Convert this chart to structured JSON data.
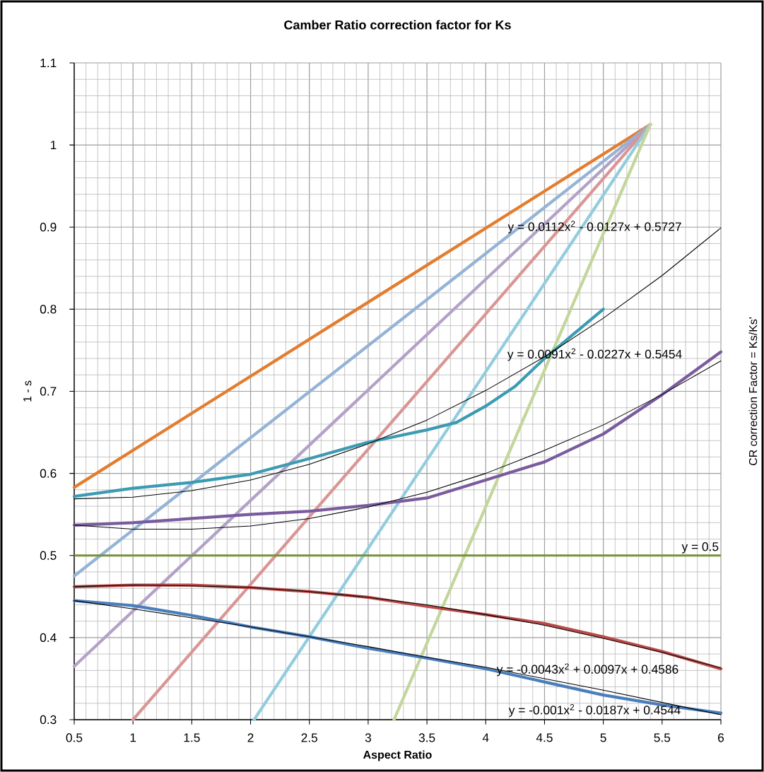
{
  "chart_data": {
    "type": "line",
    "title": "Camber Ratio correction factor for Ks",
    "xlabel": "Aspect Ratio",
    "ylabel": "1 - s",
    "y2label": "CR correction Factor = Ks/Ks'",
    "xlim": [
      0.5,
      6
    ],
    "ylim": [
      0.3,
      1.1
    ],
    "xticks": [
      0.5,
      1,
      1.5,
      2,
      2.5,
      3,
      3.5,
      4,
      4.5,
      5,
      5.5,
      6
    ],
    "yticks": [
      0.3,
      0.4,
      0.5,
      0.6,
      0.7,
      0.8,
      0.9,
      1,
      1.1
    ],
    "grid": true,
    "series": [
      {
        "color": "#e37d2f",
        "x": [
          0.5,
          5.4
        ],
        "values": [
          0.583,
          1.025
        ]
      },
      {
        "color": "#95b3d7",
        "x": [
          0.5,
          5.4
        ],
        "values": [
          0.475,
          1.025
        ]
      },
      {
        "color": "#b3a2c7",
        "x": [
          0.5,
          5.4
        ],
        "values": [
          0.365,
          1.025
        ]
      },
      {
        "color": "#d99694",
        "x": [
          1.0,
          5.4
        ],
        "values": [
          0.3,
          1.025
        ]
      },
      {
        "color": "#93cddd",
        "x": [
          2.03,
          5.4
        ],
        "values": [
          0.3,
          1.025
        ]
      },
      {
        "color": "#c3d69b",
        "x": [
          3.22,
          5.4
        ],
        "values": [
          0.3,
          1.025
        ]
      },
      {
        "color": "#3c9bb2",
        "x": [
          0.5,
          1,
          1.5,
          2,
          2.5,
          3,
          3.5,
          3.75,
          4,
          4.25,
          4.5,
          4.75,
          5
        ],
        "values": [
          0.572,
          0.582,
          0.589,
          0.599,
          0.618,
          0.638,
          0.653,
          0.662,
          0.682,
          0.706,
          0.74,
          0.77,
          0.8
        ]
      },
      {
        "color": "#7a5c9e",
        "x": [
          0.5,
          1,
          1.5,
          2,
          2.5,
          3,
          3.5,
          4,
          4.5,
          5,
          5.5,
          5.75,
          6
        ],
        "values": [
          0.537,
          0.54,
          0.545,
          0.55,
          0.554,
          0.561,
          0.57,
          0.592,
          0.614,
          0.648,
          0.696,
          0.722,
          0.748
        ]
      },
      {
        "color": "#b94a48",
        "x": [
          0.5,
          1,
          1.5,
          2,
          2.5,
          3,
          3.5,
          4,
          4.5,
          5,
          5.5,
          6
        ],
        "values": [
          0.462,
          0.464,
          0.464,
          0.461,
          0.456,
          0.449,
          0.438,
          0.428,
          0.417,
          0.401,
          0.383,
          0.362
        ]
      },
      {
        "color": "#4a7ebb",
        "x": [
          0.5,
          1,
          1.5,
          2,
          2.5,
          3,
          3.5,
          4,
          4.5,
          5,
          5.5,
          6
        ],
        "values": [
          0.445,
          0.439,
          0.427,
          0.413,
          0.401,
          0.387,
          0.375,
          0.362,
          0.346,
          0.33,
          0.318,
          0.308
        ]
      },
      {
        "color": "#000000",
        "x": [
          0.5,
          1,
          1.5,
          2,
          2.5,
          3,
          3.5,
          4,
          4.5,
          5,
          5.5,
          6
        ],
        "values": [
          0.569,
          0.571,
          0.579,
          0.592,
          0.611,
          0.636,
          0.665,
          0.701,
          0.742,
          0.789,
          0.841,
          0.899
        ]
      },
      {
        "color": "#000000",
        "x": [
          0.5,
          1,
          1.5,
          2,
          2.5,
          3,
          3.5,
          4,
          4.5,
          5,
          5.5,
          6
        ],
        "values": [
          0.537,
          0.532,
          0.532,
          0.536,
          0.545,
          0.559,
          0.577,
          0.6,
          0.628,
          0.659,
          0.696,
          0.737
        ]
      },
      {
        "color": "#000000",
        "x": [
          0.5,
          1,
          1.5,
          2,
          2.5,
          3,
          3.5,
          4,
          4.5,
          5,
          5.5,
          6
        ],
        "values": [
          0.462,
          0.464,
          0.463,
          0.461,
          0.456,
          0.449,
          0.44,
          0.428,
          0.415,
          0.399,
          0.382,
          0.363
        ]
      },
      {
        "color": "#000000",
        "x": [
          0.5,
          1,
          1.5,
          2,
          2.5,
          3,
          3.5,
          4,
          4.5,
          5,
          5.5,
          6
        ],
        "values": [
          0.445,
          0.435,
          0.424,
          0.413,
          0.401,
          0.389,
          0.376,
          0.364,
          0.35,
          0.336,
          0.321,
          0.306
        ]
      }
    ],
    "ref_lines": [
      {
        "axis": "y",
        "value": 0.5,
        "label": "y = 0.5",
        "color": "#76923c"
      }
    ],
    "annotations": [
      "y = 0.0112x$^{2}$ - 0.0127x + 0.5727",
      "y = 0.0091x$^{2}$ - 0.0227x + 0.5454",
      "y = -0.0043x$^{2}$ + 0.0097x + 0.4586",
      "y = -0.001x$^{2}$ - 0.0187x + 0.4544"
    ]
  }
}
